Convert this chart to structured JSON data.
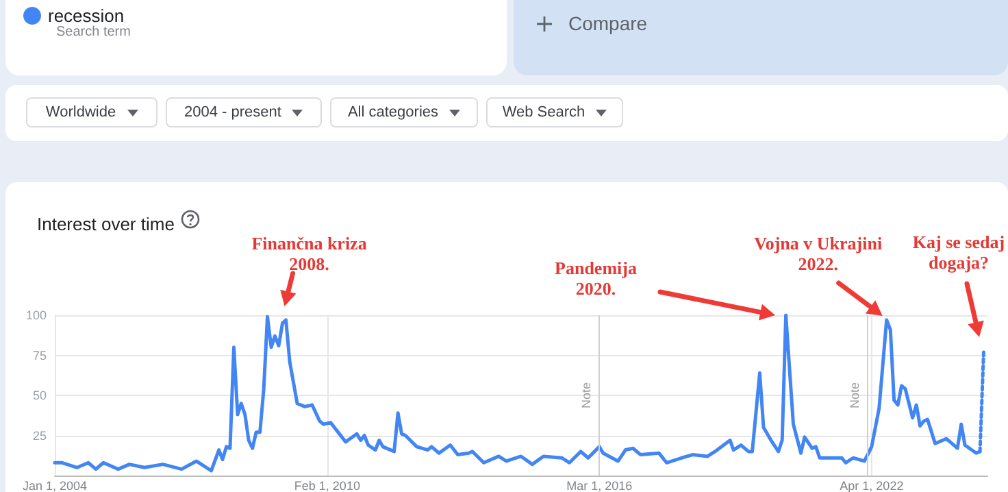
{
  "chart_data": {
    "type": "line",
    "title": "Interest over time",
    "annotations": [
      "Search term",
      "Compare",
      "Worldwide",
      "2004 - present",
      "All categories",
      "Web Search",
      {
        "text": "Finančna kriza\n2008.",
        "x": "2009-03",
        "y": 97
      },
      "Pandemija\n2020.",
      {
        "text": "Vojna v Ukrajini\n2022.",
        "x": "2022-08",
        "y": 97
      },
      "Kaj se sedaj\ndogaja?"
    ],
    "series": [
      {
        "name": "recession",
        "color": "#4285f4",
        "line_style": "solid",
        "x": [
          "2004-01",
          "2004-03",
          "2004-07",
          "2004-10",
          "2004-12",
          "2005-02",
          "2005-06",
          "2005-09",
          "2006-01",
          "2006-06",
          "2006-11",
          "2007-03",
          "2007-05",
          "2007-07",
          "2007-09",
          "2007-10",
          "2007-11",
          "2007-12",
          "2008-01",
          "2008-02",
          "2008-03",
          "2008-04",
          "2008-05",
          "2008-06",
          "2008-07",
          "2008-08",
          "2008-09",
          "2008-10",
          "2008-11",
          "2008-12",
          "2009-01",
          "2009-02",
          "2009-03",
          "2009-04",
          "2009-06",
          "2009-08",
          "2009-10",
          "2009-12",
          "2010-01",
          "2010-03",
          "2010-07",
          "2010-10",
          "2010-11",
          "2010-12",
          "2011-01",
          "2011-03",
          "2011-04",
          "2011-05",
          "2011-08",
          "2011-09",
          "2011-10",
          "2011-11",
          "2012-02",
          "2012-05",
          "2012-06",
          "2012-08",
          "2012-11",
          "2013-01",
          "2013-04",
          "2013-05",
          "2013-08",
          "2013-12",
          "2014-02",
          "2014-06",
          "2014-09",
          "2014-12",
          "2015-05",
          "2015-07",
          "2015-10",
          "2015-12",
          "2016-03",
          "2016-04",
          "2016-08",
          "2016-10",
          "2016-12",
          "2017-02",
          "2017-07",
          "2017-09",
          "2018-01",
          "2018-04",
          "2018-08",
          "2018-10",
          "2019-02",
          "2019-03",
          "2019-05",
          "2019-07",
          "2019-08",
          "2019-10",
          "2019-11",
          "2020-01",
          "2020-03",
          "2020-04",
          "2020-05",
          "2020-07",
          "2020-09",
          "2020-10",
          "2020-12",
          "2021-01",
          "2021-02",
          "2021-08",
          "2021-09",
          "2021-11",
          "2022-02",
          "2022-04",
          "2022-06",
          "2022-08",
          "2022-09",
          "2022-10",
          "2022-11",
          "2022-12",
          "2023-01",
          "2023-03",
          "2023-04",
          "2023-05",
          "2023-06",
          "2023-07",
          "2023-09",
          "2023-12",
          "2024-03",
          "2024-04",
          "2024-05",
          "2024-08",
          "2024-09"
        ],
        "values": [
          8,
          8,
          5,
          8,
          4,
          8,
          4,
          7,
          5,
          7,
          4,
          9,
          6,
          3,
          16,
          10,
          18,
          17,
          80,
          38,
          45,
          38,
          22,
          17,
          27,
          27,
          54,
          99,
          80,
          87,
          81,
          95,
          97,
          71,
          45,
          43,
          44,
          34,
          32,
          33,
          21,
          26,
          22,
          25,
          19,
          16,
          22,
          18,
          15,
          39,
          26,
          25,
          18,
          16,
          18,
          14,
          19,
          13,
          14,
          15,
          8,
          12,
          9,
          12,
          7,
          12,
          11,
          8,
          15,
          11,
          18,
          14,
          9,
          16,
          17,
          13,
          14,
          8,
          11,
          13,
          12,
          15,
          22,
          16,
          19,
          15,
          15,
          64,
          30,
          22,
          15,
          22,
          100,
          32,
          14,
          24,
          17,
          18,
          11,
          11,
          8,
          11,
          9,
          18,
          42,
          97,
          91,
          47,
          44,
          56,
          54,
          36,
          44,
          31,
          34,
          35,
          20,
          23,
          17,
          32,
          19,
          14,
          15
        ]
      },
      {
        "color": "#4285f4",
        "line_style": "dotted",
        "x": [
          "2024-09",
          "2024-10"
        ],
        "values": [
          15,
          77
        ]
      }
    ],
    "xlim": [
      "2004-01",
      "2024-11"
    ],
    "xticks": [
      {
        "value": "2004-01-01",
        "label": "Jan 1, 2004"
      },
      {
        "value": "2010-02-01",
        "label": "Feb 1, 2010"
      },
      {
        "value": "2016-03-01",
        "label": "Mar 1, 2016"
      },
      {
        "value": "2022-04-01",
        "label": "Apr 1, 2022"
      }
    ],
    "ylim": [
      0,
      100
    ],
    "yticks": [
      25,
      50,
      75,
      100
    ],
    "ref_lines": [
      {
        "axis": "x",
        "value": "2016-03",
        "label": "Note"
      },
      {
        "axis": "x",
        "value": "2022-03",
        "label": "Note"
      }
    ],
    "grid": true,
    "legend": "top left",
    "marker": "none"
  }
}
